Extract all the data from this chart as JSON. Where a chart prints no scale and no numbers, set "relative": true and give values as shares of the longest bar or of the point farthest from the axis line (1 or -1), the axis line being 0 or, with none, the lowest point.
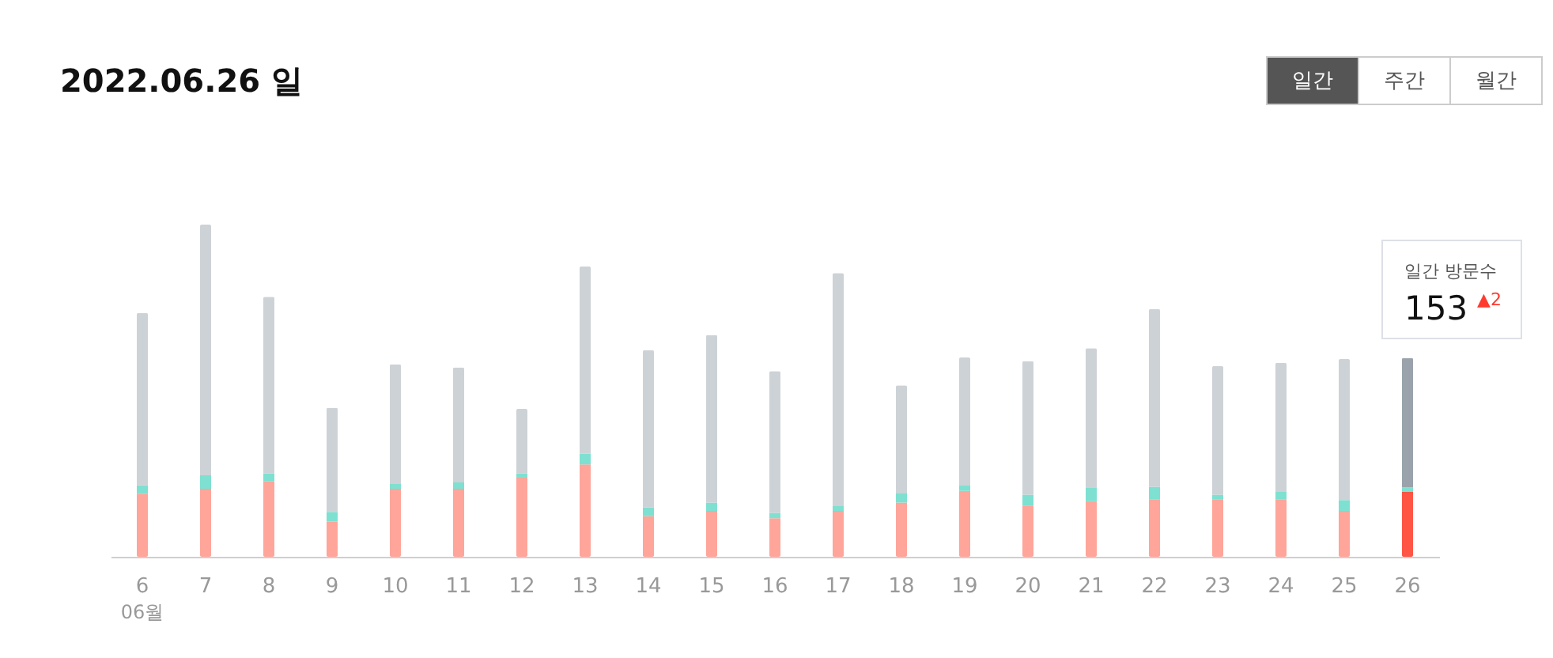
{
  "chart_data": {
    "type": "bar",
    "title": "2022.06.26 일",
    "stacked": true,
    "relative": true,
    "categories": [
      "6",
      "7",
      "8",
      "9",
      "10",
      "11",
      "12",
      "13",
      "14",
      "15",
      "16",
      "17",
      "18",
      "19",
      "20",
      "21",
      "22",
      "23",
      "24",
      "25",
      "26"
    ],
    "series": [
      {
        "colors": [
          "#ffa59a",
          "#ffa59a",
          "#ffa59a",
          "#ffa59a",
          "#ffa59a",
          "#ffa59a",
          "#ffa59a",
          "#ffa59a",
          "#ffa59a",
          "#ffa59a",
          "#ffa59a",
          "#ffa59a",
          "#ffa59a",
          "#ffa59a",
          "#ffa59a",
          "#ffa59a",
          "#ffa59a",
          "#ffa59a",
          "#ffa59a",
          "#ffa59a",
          "#ff5545"
        ],
        "values": [
          0.19,
          0.205,
          0.227,
          0.106,
          0.205,
          0.205,
          0.238,
          0.278,
          0.122,
          0.138,
          0.116,
          0.138,
          0.163,
          0.198,
          0.154,
          0.167,
          0.173,
          0.173,
          0.173,
          0.138,
          0.195
        ]
      },
      {
        "color": "#7ee0d0",
        "values": [
          0.025,
          0.04,
          0.024,
          0.029,
          0.016,
          0.019,
          0.013,
          0.033,
          0.027,
          0.025,
          0.016,
          0.016,
          0.029,
          0.016,
          0.033,
          0.04,
          0.038,
          0.014,
          0.022,
          0.033,
          0.014
        ]
      },
      {
        "colors": [
          "#cdd2d6",
          "#cdd2d6",
          "#cdd2d6",
          "#cdd2d6",
          "#cdd2d6",
          "#cdd2d6",
          "#cdd2d6",
          "#cdd2d6",
          "#cdd2d6",
          "#cdd2d6",
          "#cdd2d6",
          "#cdd2d6",
          "#cdd2d6",
          "#cdd2d6",
          "#cdd2d6",
          "#cdd2d6",
          "#cdd2d6",
          "#cdd2d6",
          "#cdd2d6",
          "#cdd2d6",
          "#9aa3ac"
        ],
        "values": [
          0.519,
          0.755,
          0.532,
          0.314,
          0.359,
          0.346,
          0.194,
          0.563,
          0.473,
          0.505,
          0.427,
          0.7,
          0.324,
          0.386,
          0.402,
          0.421,
          0.535,
          0.387,
          0.389,
          0.424,
          0.39
        ]
      }
    ],
    "annotations": [
      "일간",
      "주간",
      "월간",
      "06월",
      "일간 방문수",
      "153",
      "▲2"
    ]
  }
}
